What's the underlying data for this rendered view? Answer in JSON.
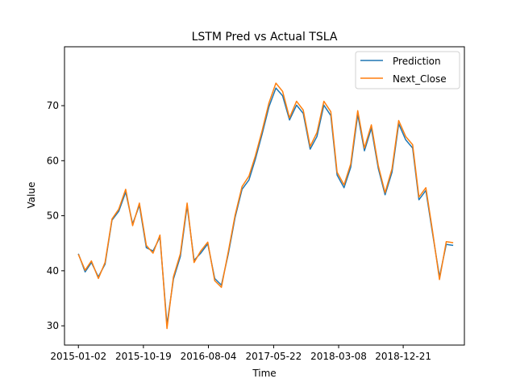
{
  "chart_data": {
    "type": "line",
    "title": "LSTM Pred vs Actual TSLA",
    "xlabel": "Time",
    "ylabel": "Value",
    "xlim": [
      "2014-11-01",
      "2019-09-20"
    ],
    "ylim": [
      26.5,
      80.7
    ],
    "xticks": [
      "2015-01-02",
      "2015-10-19",
      "2016-08-04",
      "2017-05-22",
      "2018-03-08",
      "2018-12-21"
    ],
    "yticks": [
      30,
      40,
      50,
      60,
      70
    ],
    "legend_position": "upper-right",
    "grid": false,
    "x": [
      "2015-01-02",
      "2015-02-01",
      "2015-03-01",
      "2015-04-01",
      "2015-05-01",
      "2015-06-01",
      "2015-07-01",
      "2015-08-01",
      "2015-09-01",
      "2015-10-01",
      "2015-11-01",
      "2015-12-01",
      "2016-01-01",
      "2016-02-01",
      "2016-03-01",
      "2016-04-01",
      "2016-05-01",
      "2016-06-01",
      "2016-07-01",
      "2016-08-01",
      "2016-09-01",
      "2016-10-01",
      "2016-11-01",
      "2016-12-01",
      "2017-01-01",
      "2017-02-01",
      "2017-03-01",
      "2017-04-01",
      "2017-05-01",
      "2017-06-01",
      "2017-07-01",
      "2017-08-01",
      "2017-09-01",
      "2017-10-01",
      "2017-11-01",
      "2017-12-01",
      "2018-01-01",
      "2018-02-01",
      "2018-03-01",
      "2018-04-01",
      "2018-05-01",
      "2018-06-01",
      "2018-07-01",
      "2018-08-01",
      "2018-09-01",
      "2018-10-01",
      "2018-11-01",
      "2018-12-01",
      "2019-01-01",
      "2019-02-01",
      "2019-03-01",
      "2019-04-01",
      "2019-05-01",
      "2019-06-01",
      "2019-07-01",
      "2019-08-01"
    ],
    "series": [
      {
        "name": "Prediction",
        "color": "#1f77b4",
        "values": [
          43.1,
          39.8,
          41.5,
          38.9,
          41.2,
          49.2,
          50.8,
          54.3,
          48.5,
          51.9,
          44.2,
          43.6,
          46.1,
          30.2,
          38.5,
          42.6,
          51.8,
          41.9,
          43.2,
          44.9,
          38.6,
          37.4,
          43.1,
          49.7,
          54.8,
          56.5,
          60.2,
          64.9,
          69.8,
          73.2,
          71.8,
          67.4,
          70.1,
          68.6,
          62.1,
          64.4,
          70.1,
          68.2,
          57.4,
          55.1,
          58.8,
          68.4,
          61.8,
          65.9,
          58.6,
          53.8,
          57.9,
          66.7,
          63.8,
          62.3,
          52.9,
          54.6,
          46.8,
          38.9,
          44.8,
          44.6
        ]
      },
      {
        "name": "Next_Close",
        "color": "#ff7f0e",
        "values": [
          43.0,
          40.1,
          41.8,
          38.6,
          41.5,
          49.4,
          51.2,
          54.8,
          48.2,
          52.3,
          44.6,
          43.2,
          46.5,
          29.5,
          38.9,
          43.1,
          52.3,
          41.5,
          43.6,
          45.2,
          38.2,
          37.0,
          43.5,
          50.1,
          55.3,
          57.2,
          60.8,
          65.5,
          70.5,
          74.1,
          72.6,
          67.8,
          70.8,
          69.2,
          62.6,
          65.1,
          70.8,
          68.9,
          57.9,
          55.6,
          59.4,
          69.1,
          62.3,
          66.5,
          59.1,
          54.2,
          58.5,
          67.3,
          64.4,
          62.9,
          53.4,
          55.1,
          47.2,
          38.4,
          45.3,
          45.1
        ]
      }
    ]
  }
}
